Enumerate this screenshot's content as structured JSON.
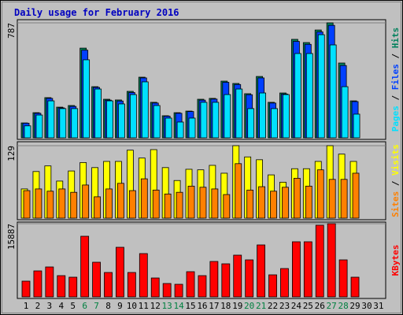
{
  "chart_data": [
    {
      "type": "bar",
      "title": "Daily usage for February 2016",
      "ylim": [
        0,
        787
      ],
      "yticks": [
        787
      ],
      "grid": true,
      "legend_separator": " / ",
      "series": [
        {
          "name": "Hits",
          "color": "#00805c",
          "values": [
            102,
            172,
            275,
            210,
            221,
            614,
            350,
            264,
            259,
            318,
            415,
            243,
            151,
            172,
            183,
            264,
            270,
            388,
            372,
            302,
            420,
            243,
            307,
            674,
            652,
            738,
            787,
            512,
            253,
            null,
            null
          ]
        },
        {
          "name": "Files",
          "color": "#0040ff",
          "values": [
            100,
            168,
            270,
            205,
            215,
            600,
            345,
            258,
            252,
            310,
            410,
            238,
            148,
            168,
            180,
            258,
            265,
            380,
            365,
            295,
            410,
            238,
            300,
            660,
            640,
            725,
            770,
            495,
            248,
            null,
            null
          ]
        },
        {
          "name": "Pages",
          "color": "#00e0ff",
          "values": [
            82,
            156,
            253,
            200,
            200,
            534,
            334,
            253,
            232,
            296,
            383,
            221,
            135,
            108,
            135,
            243,
            243,
            296,
            334,
            200,
            307,
            200,
            296,
            577,
            577,
            706,
            636,
            350,
            162,
            null,
            null
          ]
        }
      ]
    },
    {
      "type": "bar",
      "ylim": [
        0,
        129
      ],
      "yticks": [
        129
      ],
      "grid": true,
      "legend_separator": " / ",
      "series": [
        {
          "name": "Visits",
          "color": "#ffff00",
          "values": [
            52,
            83,
            93,
            66,
            84,
            99,
            90,
            101,
            101,
            121,
            107,
            122,
            90,
            67,
            87,
            86,
            94,
            80,
            129,
            109,
            104,
            77,
            64,
            88,
            88,
            101,
            129,
            114,
            101,
            null,
            null
          ]
        },
        {
          "name": "Sites",
          "color": "#ff8000",
          "values": [
            49,
            52,
            48,
            52,
            46,
            59,
            38,
            52,
            62,
            49,
            70,
            50,
            43,
            46,
            57,
            55,
            52,
            42,
            97,
            50,
            56,
            48,
            55,
            71,
            57,
            86,
            69,
            69,
            80,
            null,
            null
          ]
        }
      ]
    },
    {
      "type": "bar",
      "ylim": [
        0,
        15887
      ],
      "yticks": [
        15887
      ],
      "grid": true,
      "categories": [
        "1",
        "2",
        "3",
        "4",
        "5",
        "6",
        "7",
        "8",
        "9",
        "10",
        "11",
        "12",
        "13",
        "14",
        "15",
        "16",
        "17",
        "18",
        "19",
        "20",
        "21",
        "22",
        "23",
        "24",
        "25",
        "26",
        "27",
        "28",
        "29",
        "30",
        "31"
      ],
      "category_colors": [
        "#000000",
        "#000000",
        "#000000",
        "#000000",
        "#000000",
        "#008040",
        "#008040",
        "#000000",
        "#000000",
        "#000000",
        "#000000",
        "#000000",
        "#008040",
        "#008040",
        "#000000",
        "#000000",
        "#000000",
        "#000000",
        "#000000",
        "#008040",
        "#008040",
        "#000000",
        "#000000",
        "#000000",
        "#000000",
        "#000000",
        "#008040",
        "#008040",
        "#000000",
        "#000000",
        "#000000"
      ],
      "series": [
        {
          "name": "KBytes",
          "color": "#ff0000",
          "values": [
            3417,
            5638,
            6492,
            4612,
            4271,
            13154,
            7517,
            5296,
            10762,
            5296,
            9395,
            4100,
            2904,
            2733,
            5467,
            4612,
            7688,
            7175,
            9054,
            8029,
            11274,
            4783,
            6150,
            11958,
            11958,
            15545,
            15887,
            8029,
            4271,
            null,
            null
          ]
        }
      ]
    }
  ]
}
